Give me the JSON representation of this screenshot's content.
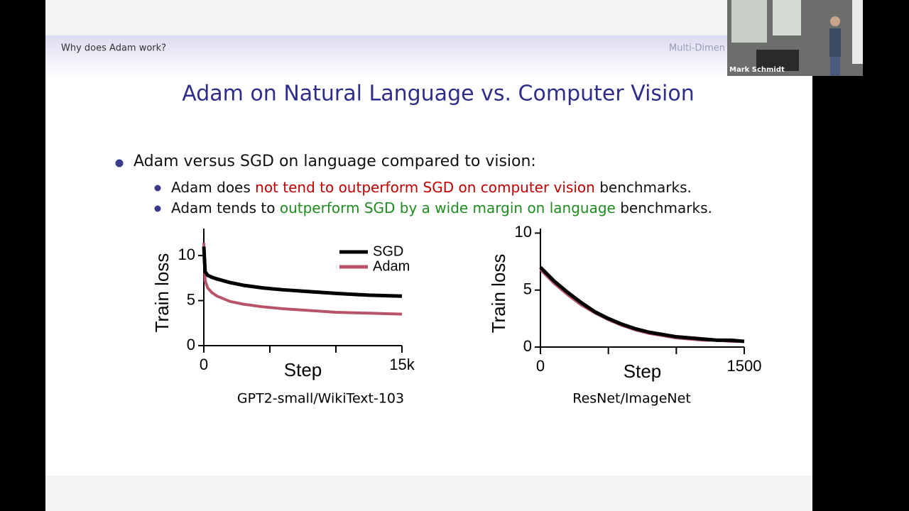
{
  "header": {
    "left": "Why does Adam work?",
    "right": "Multi-Dimen"
  },
  "webcam": {
    "label": "Mark Schmidt"
  },
  "slide_title": "Adam on Natural Language vs. Computer Vision",
  "bullets": [
    {
      "segments": [
        {
          "text": "Adam versus SGD on language compared to vision:"
        }
      ],
      "sub": [
        {
          "segments": [
            {
              "text": "Adam does"
            },
            {
              "text": "not tend to outperform SGD on computer vision",
              "color": "#c00000"
            },
            {
              "text": "benchmarks."
            }
          ]
        },
        {
          "segments": [
            {
              "text": "Adam tends to"
            },
            {
              "text": "outperform SGD by a wide margin on language",
              "color": "#1e8c1e"
            },
            {
              "text": "benchmarks."
            }
          ]
        }
      ]
    }
  ],
  "chart_data": [
    {
      "type": "line",
      "caption": "GPT2-small/WikiText-103",
      "x_label": "Step",
      "y_label": "Train loss",
      "x": [
        0,
        100,
        300,
        600,
        1000,
        2000,
        3000,
        4500,
        6000,
        8000,
        10000,
        12500,
        15000
      ],
      "series": [
        {
          "name": "SGD",
          "color": "#000000",
          "values": [
            11,
            8.2,
            7.8,
            7.6,
            7.4,
            7.0,
            6.7,
            6.4,
            6.2,
            6.0,
            5.8,
            5.6,
            5.5
          ]
        },
        {
          "name": "Adam",
          "color": "#b85468",
          "values": [
            11.4,
            7.2,
            6.4,
            5.9,
            5.5,
            4.9,
            4.6,
            4.3,
            4.1,
            3.9,
            3.7,
            3.6,
            3.5
          ]
        }
      ],
      "xlim": [
        0,
        15000
      ],
      "xticks": [
        0,
        {
          "value": 5000,
          "label": null
        },
        {
          "value": 10000,
          "label": null
        },
        {
          "value": 15000,
          "label": "15k"
        }
      ],
      "ylim": [
        0,
        13
      ],
      "yticks": [
        0,
        5,
        10
      ],
      "legend": "top-right"
    },
    {
      "type": "line",
      "caption": "ResNet/ImageNet",
      "x_label": "Step",
      "y_label": "Train loss",
      "x": [
        0,
        100,
        200,
        300,
        400,
        500,
        600,
        700,
        800,
        900,
        1000,
        1100,
        1200,
        1300,
        1400,
        1500
      ],
      "series": [
        {
          "color": "#000000",
          "values": [
            7.0,
            5.8,
            4.8,
            3.9,
            3.1,
            2.5,
            2.0,
            1.6,
            1.3,
            1.1,
            0.9,
            0.8,
            0.7,
            0.6,
            0.6,
            0.5
          ]
        },
        {
          "color": "#b85468",
          "values": [
            6.8,
            5.6,
            4.6,
            3.7,
            3.0,
            2.4,
            1.9,
            1.5,
            1.2,
            1.0,
            0.8,
            0.7,
            0.6,
            0.6,
            0.5,
            0.5
          ]
        }
      ],
      "xlim": [
        0,
        1500
      ],
      "xticks": [
        0,
        {
          "value": 500,
          "label": null
        },
        {
          "value": 1000,
          "label": null
        },
        1500
      ],
      "ylim": [
        0,
        10.4
      ],
      "yticks": [
        0,
        5,
        10
      ]
    }
  ]
}
